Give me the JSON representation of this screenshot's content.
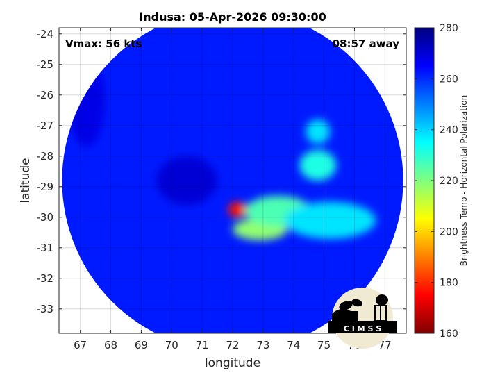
{
  "chart_data": {
    "type": "heatmap",
    "title": "Indusa: 05-Apr-2026 09:30:00",
    "xlabel": "longitude",
    "ylabel": "latitude",
    "xlim": [
      66.3,
      77.7
    ],
    "ylim": [
      -33.8,
      -23.8
    ],
    "xticks": [
      67,
      68,
      69,
      70,
      71,
      72,
      73,
      74,
      75,
      76,
      77
    ],
    "yticks": [
      -24,
      -25,
      -26,
      -27,
      -28,
      -29,
      -30,
      -31,
      -32,
      -33
    ],
    "grid": true,
    "annotations": {
      "left": "Vmax: 56 kts",
      "right": "08:57 away"
    },
    "colorbar": {
      "label": "Brightness Temp - Horizontal Polarization",
      "range": [
        160,
        280
      ],
      "ticks": [
        160,
        180,
        200,
        220,
        240,
        260,
        280
      ],
      "colormap": "jet"
    },
    "swath": {
      "center_lon": 72.0,
      "center_lat": -28.8,
      "radius_deg": 5.6
    },
    "background_tb": 262,
    "features": [
      {
        "lon": 72.15,
        "lat": -29.75,
        "tb": 178,
        "rx": 0.3,
        "ry": 0.25
      },
      {
        "lon": 72.9,
        "lat": -30.4,
        "tb": 218,
        "rx": 0.9,
        "ry": 0.35
      },
      {
        "lon": 73.5,
        "lat": -29.8,
        "tb": 226,
        "rx": 1.1,
        "ry": 0.5
      },
      {
        "lon": 74.8,
        "lat": -28.3,
        "tb": 232,
        "rx": 0.6,
        "ry": 0.5
      },
      {
        "lon": 74.8,
        "lat": -27.2,
        "tb": 238,
        "rx": 0.4,
        "ry": 0.4
      },
      {
        "lon": 75.2,
        "lat": -30.1,
        "tb": 238,
        "rx": 1.5,
        "ry": 0.6
      },
      {
        "lon": 70.5,
        "lat": -28.8,
        "tb": 270,
        "rx": 1.0,
        "ry": 0.8
      },
      {
        "lon": 67.2,
        "lat": -26.2,
        "tb": 268,
        "rx": 0.6,
        "ry": 1.5
      }
    ]
  },
  "logo": {
    "text": "C I M S S"
  }
}
